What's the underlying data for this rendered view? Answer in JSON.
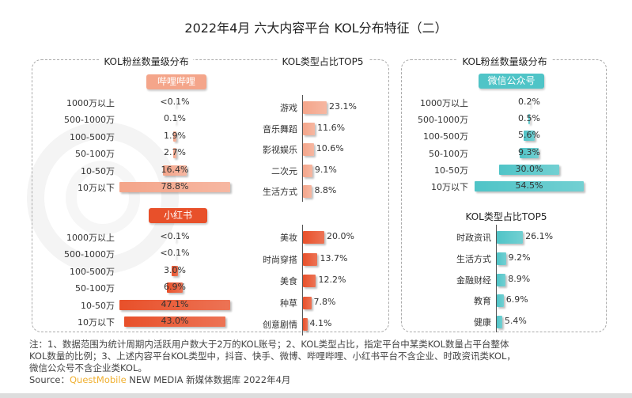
{
  "title": "2022年4月 六大内容平台 KOL分布特征（二）",
  "watermark": "QUESTMOBILE",
  "headers": {
    "fans": "KOL粉丝数量级分布",
    "types": "KOL类型占比TOP5"
  },
  "colors": {
    "bilibili": "#f4a58a",
    "xiaohongshu": "#e8502a",
    "wechat": "#4fc4c7"
  },
  "chart_data": [
    {
      "type": "bar",
      "platform": "哔哩哔哩",
      "title": "KOL粉丝数量级分布",
      "categories": [
        "1000万以上",
        "500-1000万",
        "100-500万",
        "50-100万",
        "10-50万",
        "10万以下"
      ],
      "values": [
        0.05,
        0.1,
        1.9,
        2.7,
        16.4,
        78.8
      ],
      "labels": [
        "<0.1%",
        "0.1%",
        "1.9%",
        "2.7%",
        "16.4%",
        "78.8%"
      ]
    },
    {
      "type": "bar",
      "platform": "哔哩哔哩",
      "title": "KOL类型占比TOP5",
      "categories": [
        "游戏",
        "音乐舞蹈",
        "影视娱乐",
        "二次元",
        "生活方式"
      ],
      "values": [
        23.1,
        11.6,
        10.6,
        9.1,
        8.8
      ],
      "labels": [
        "23.1%",
        "11.6%",
        "10.6%",
        "9.1%",
        "8.8%"
      ]
    },
    {
      "type": "bar",
      "platform": "小红书",
      "title": "KOL粉丝数量级分布",
      "categories": [
        "1000万以上",
        "500-1000万",
        "100-500万",
        "50-100万",
        "10-50万",
        "10万以下"
      ],
      "values": [
        0.05,
        0.05,
        3.0,
        6.9,
        47.1,
        43.0
      ],
      "labels": [
        "<0.1%",
        "<0.1%",
        "3.0%",
        "6.9%",
        "47.1%",
        "43.0%"
      ]
    },
    {
      "type": "bar",
      "platform": "小红书",
      "title": "KOL类型占比TOP5",
      "categories": [
        "美妆",
        "时尚穿搭",
        "美食",
        "种草",
        "创意剧情"
      ],
      "values": [
        20.0,
        13.7,
        12.2,
        7.8,
        4.1
      ],
      "labels": [
        "20.0%",
        "13.7%",
        "12.2%",
        "7.8%",
        "4.1%"
      ]
    },
    {
      "type": "bar",
      "platform": "微信公众号",
      "title": "KOL粉丝数量级分布",
      "categories": [
        "1000万以上",
        "500-1000万",
        "100-500万",
        "50-100万",
        "10-50万",
        "10万以下"
      ],
      "values": [
        0.2,
        0.5,
        5.6,
        9.3,
        30.0,
        54.5
      ],
      "labels": [
        "0.2%",
        "0.5%",
        "5.6%",
        "9.3%",
        "30.0%",
        "54.5%"
      ]
    },
    {
      "type": "bar",
      "platform": "微信公众号",
      "title": "KOL类型占比TOP5",
      "categories": [
        "时政资讯",
        "生活方式",
        "金融财经",
        "教育",
        "健康"
      ],
      "values": [
        26.1,
        9.2,
        8.9,
        6.9,
        5.4
      ],
      "labels": [
        "26.1%",
        "9.2%",
        "8.9%",
        "6.9%",
        "5.4%"
      ]
    }
  ],
  "notes": {
    "line1": "注：1、数据范围为统计周期内活跃用户数大于2万的KOL账号；2、KOL类型占比，指定平台中某类KOL数量占平台整体",
    "line2": "KOL数量的比例；3、上述内容平台KOL类型中，抖音、快手、微博、哔哩哔哩、小红书平台不含企业、时政资讯类KOL，",
    "line3": "微信公众号不含企业类KOL。",
    "source_prefix": "Source：",
    "source_brand": "QuestMobile",
    "source_rest": " NEW MEDIA 新媒体数据库 2022年4月"
  }
}
